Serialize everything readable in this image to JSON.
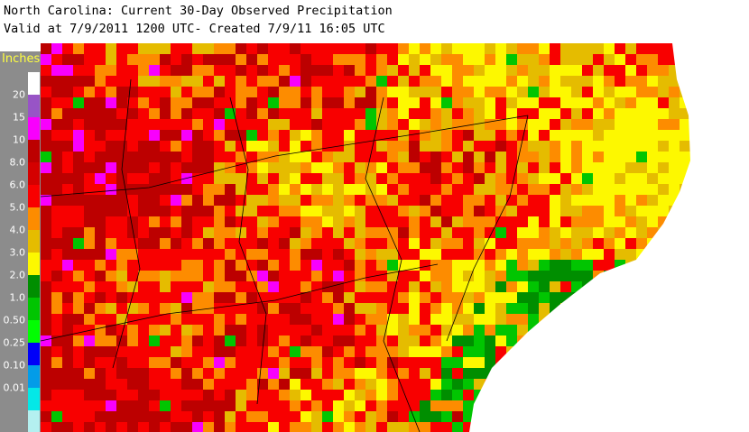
{
  "header": {
    "title": "North Carolina: Current 30-Day Observed Precipitation",
    "subtitle": "Valid at 7/9/2011 1200 UTC- Created 7/9/11 16:05 UTC"
  },
  "legend": {
    "title": "Inches",
    "labels": [
      "20",
      "15",
      "10",
      "8.0",
      "6.0",
      "5.0",
      "4.0",
      "3.0",
      "2.0",
      "1.0",
      "0.50",
      "0.25",
      "0.10",
      "0.01"
    ],
    "colors": [
      "#ffffff",
      "#9854c6",
      "#f800fd",
      "#bc0000",
      "#d40000",
      "#f80000",
      "#fd8c00",
      "#e5bc00",
      "#fdf800",
      "#008e00",
      "#01c501",
      "#02fd02",
      "#0000f8",
      "#039ce8",
      "#04e8e7",
      "#b4f0f0"
    ]
  }
}
